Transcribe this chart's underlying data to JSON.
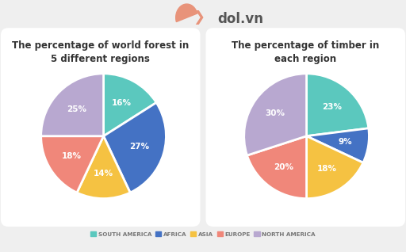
{
  "chart1_title": "The percentage of world forest in\n5 different regions",
  "chart2_title": "The percentage of timber in\neach region",
  "colors": [
    "#5BC8BE",
    "#4472C4",
    "#F5C242",
    "#F0877A",
    "#B8A8D0"
  ],
  "pie1_values": [
    16,
    27,
    14,
    18,
    25
  ],
  "pie1_labels": [
    "16%",
    "27%",
    "14%",
    "18%",
    "25%"
  ],
  "pie2_values": [
    23,
    9,
    18,
    20,
    30
  ],
  "pie2_labels": [
    "23%",
    "9%",
    "18%",
    "20%",
    "30%"
  ],
  "legend_labels": [
    "SOUTH AMERICA",
    "AFRICA",
    "ASIA",
    "EUROPE",
    "NORTH AMERICA"
  ],
  "bg_color": "#EFEFEF",
  "panel_color": "#FAFAFA",
  "label_fontsize": 7.5,
  "title_fontsize": 8.5
}
